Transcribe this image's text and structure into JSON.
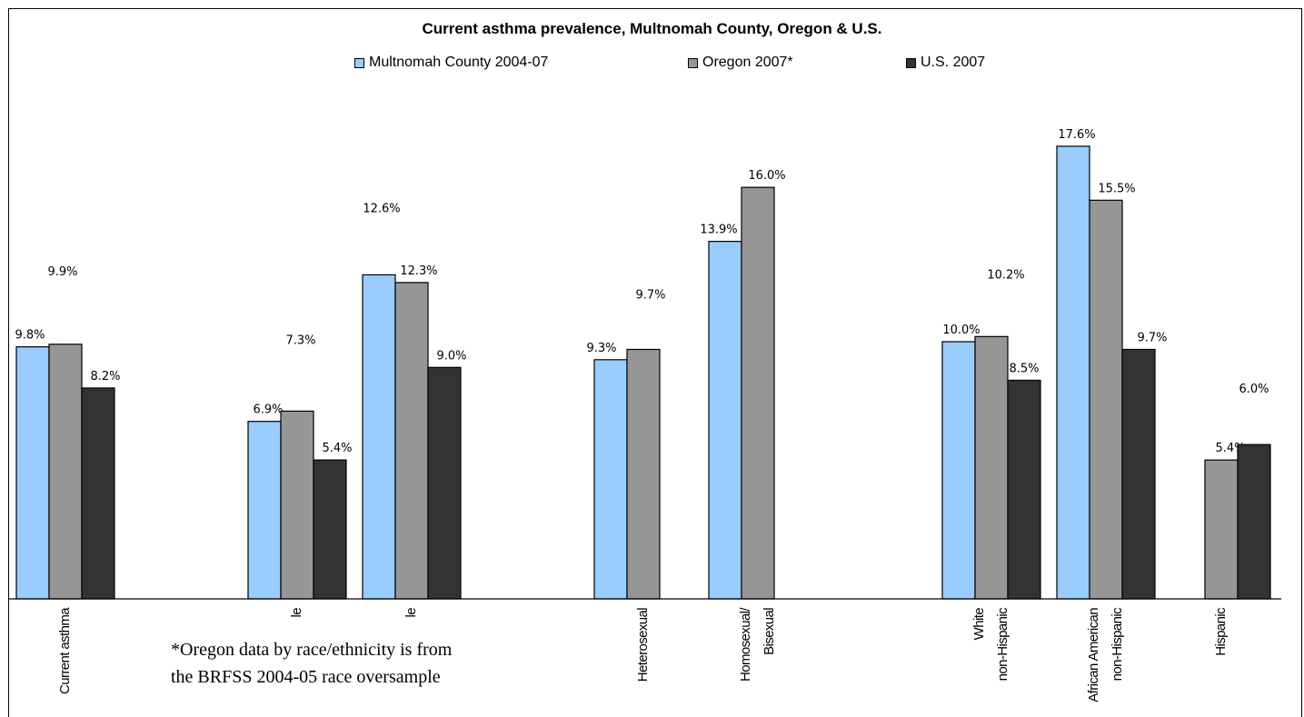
{
  "chart_data": {
    "type": "bar",
    "title": "Current asthma prevalence, Multnomah County, Oregon & U.S.",
    "legend_position": "top",
    "grid": false,
    "ylim": [
      0,
      20
    ],
    "categories": [
      {
        "label": "Current asthma",
        "lines": [
          "Current asthma"
        ]
      },
      {
        "label": "le",
        "lines": [
          "le"
        ]
      },
      {
        "label": "le",
        "lines": [
          "le"
        ]
      },
      {
        "label": "Heterosexual",
        "lines": [
          "Heterosexual"
        ]
      },
      {
        "label": "Homosexual/ Bisexual",
        "lines": [
          "Homosexual/",
          "Bisexual"
        ]
      },
      {
        "label": "White non-Hispanic",
        "lines": [
          "White",
          "non-Hispanic"
        ]
      },
      {
        "label": "African American non-Hispanic",
        "lines": [
          "African American",
          "non-Hispanic"
        ]
      },
      {
        "label": "Hispanic",
        "lines": [
          "Hispanic"
        ]
      }
    ],
    "series": [
      {
        "name": "Multnomah County 2004-07",
        "color": "#99ccff",
        "values": [
          9.8,
          6.9,
          12.6,
          9.3,
          13.9,
          10.0,
          17.6,
          null
        ],
        "labels": [
          "9.8%",
          "6.9%",
          "12.6%",
          "9.3%",
          "13.9%",
          "10.0%",
          "17.6%",
          ""
        ]
      },
      {
        "name": "Oregon 2007*",
        "color": "#969696",
        "values": [
          9.9,
          7.3,
          12.3,
          9.7,
          16.0,
          10.2,
          15.5,
          5.4
        ],
        "labels": [
          "9.9%",
          "7.3%",
          "12.3%",
          "9.7%",
          "16.0%",
          "10.2%",
          "15.5%",
          "5.4%"
        ]
      },
      {
        "name": "U.S. 2007",
        "color": "#333333",
        "values": [
          8.2,
          5.4,
          9.0,
          null,
          null,
          8.5,
          9.7,
          6.0
        ],
        "labels": [
          "8.2%",
          "5.4%",
          "9.0%",
          "",
          "",
          "8.5%",
          "9.7%",
          "6.0%"
        ]
      }
    ],
    "footnote_lines": [
      "*Oregon data by race/ethnicity is from",
      "the BRFSS 2004-05  race oversample"
    ]
  }
}
